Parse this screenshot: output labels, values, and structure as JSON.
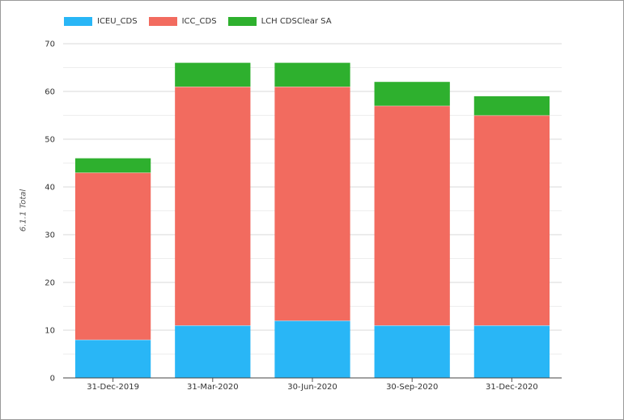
{
  "chart_data": {
    "type": "bar",
    "stacked": true,
    "categories": [
      "31-Dec-2019",
      "31-Mar-2020",
      "30-Jun-2020",
      "30-Sep-2020",
      "31-Dec-2020"
    ],
    "series": [
      {
        "name": "ICEU_CDS",
        "color": "#29b6f6",
        "values": [
          8,
          11,
          12,
          11,
          11
        ]
      },
      {
        "name": "ICC_CDS",
        "color": "#f26b5f",
        "values": [
          35,
          50,
          49,
          46,
          44
        ]
      },
      {
        "name": "LCH CDSClear SA",
        "color": "#2eb02e",
        "values": [
          3,
          5,
          5,
          5,
          4
        ]
      }
    ],
    "xlabel": "",
    "ylabel": "6.1.1 Total",
    "ylim": [
      0,
      70
    ],
    "yticks": [
      0,
      10,
      20,
      30,
      40,
      50,
      60,
      70
    ],
    "grid": true,
    "legend_position": "top-left"
  }
}
